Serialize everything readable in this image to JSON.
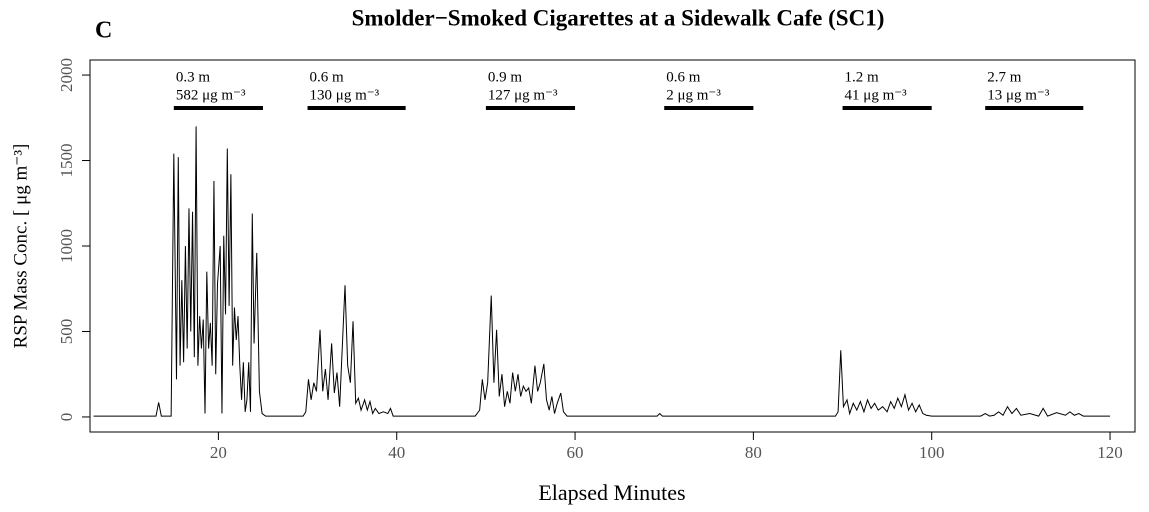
{
  "chart_data": {
    "type": "line",
    "panel": "C",
    "title": "Smolder−Smoked Cigarettes at a Sidewalk Cafe (SC1)",
    "x_label": "Elapsed Minutes",
    "y_label": "RSP Mass Conc. [  μg m⁻³]",
    "color": "#000000",
    "xlim": [
      5.6,
      122.8
    ],
    "ylim": [
      -88,
      2088
    ],
    "xticks": [
      20,
      40,
      60,
      80,
      100,
      120
    ],
    "yticks": [
      0,
      500,
      1000,
      1500,
      2000
    ],
    "x": [
      6,
      13,
      13.3,
      13.6,
      14.7,
      15.0,
      15.3,
      15.5,
      15.7,
      15.9,
      16.1,
      16.3,
      16.5,
      16.7,
      16.9,
      17.1,
      17.3,
      17.5,
      17.7,
      17.9,
      18.1,
      18.3,
      18.5,
      18.7,
      18.9,
      19.1,
      19.3,
      19.5,
      19.7,
      19.9,
      20.2,
      20.4,
      20.6,
      20.8,
      21.0,
      21.2,
      21.4,
      21.6,
      21.8,
      22.0,
      22.2,
      22.4,
      22.6,
      22.8,
      23.0,
      23.2,
      23.4,
      23.6,
      23.8,
      24.0,
      24.3,
      24.6,
      24.9,
      25.3,
      29.5,
      29.8,
      30.1,
      30.4,
      30.7,
      31.0,
      31.4,
      31.7,
      32.0,
      32.3,
      32.7,
      33.0,
      33.3,
      33.6,
      34.2,
      34.5,
      34.8,
      35.1,
      35.4,
      35.7,
      36.0,
      36.4,
      36.7,
      37.0,
      37.3,
      37.6,
      38.0,
      38.5,
      39.0,
      39.3,
      39.6,
      48.8,
      49.3,
      49.6,
      49.9,
      50.2,
      50.6,
      50.9,
      51.2,
      51.5,
      51.8,
      52.1,
      52.4,
      52.7,
      53.0,
      53.3,
      53.6,
      53.9,
      54.2,
      54.5,
      54.8,
      55.1,
      55.5,
      55.8,
      56.1,
      56.5,
      56.8,
      57.1,
      57.4,
      57.7,
      58.0,
      58.4,
      58.7,
      59.1,
      69.2,
      69.5,
      69.8,
      89.2,
      89.5,
      89.8,
      90.1,
      90.5,
      90.8,
      91.2,
      91.6,
      92.0,
      92.4,
      92.8,
      93.2,
      93.6,
      94.0,
      94.5,
      95.0,
      95.4,
      95.8,
      96.2,
      96.6,
      97.0,
      97.4,
      97.8,
      98.2,
      98.6,
      99.0,
      99.4,
      100,
      105.5,
      106,
      106.5,
      107,
      107.5,
      108,
      108.5,
      109,
      109.5,
      110,
      111,
      112,
      112.5,
      113,
      114,
      115,
      115.5,
      116,
      116.5,
      117,
      120
    ],
    "values": [
      5,
      5,
      85,
      5,
      5,
      1540,
      220,
      1520,
      300,
      800,
      320,
      1000,
      400,
      1220,
      500,
      1200,
      350,
      1700,
      300,
      590,
      400,
      570,
      20,
      850,
      400,
      550,
      300,
      1380,
      250,
      780,
      1000,
      20,
      1060,
      600,
      1570,
      650,
      1420,
      300,
      640,
      450,
      590,
      300,
      100,
      320,
      30,
      100,
      320,
      30,
      1190,
      430,
      960,
      150,
      20,
      5,
      5,
      30,
      220,
      100,
      200,
      150,
      510,
      150,
      280,
      100,
      430,
      140,
      260,
      60,
      770,
      300,
      200,
      560,
      80,
      110,
      40,
      100,
      40,
      90,
      20,
      50,
      20,
      30,
      20,
      50,
      5,
      5,
      40,
      220,
      100,
      200,
      710,
      200,
      510,
      120,
      250,
      60,
      150,
      80,
      260,
      150,
      250,
      120,
      180,
      150,
      170,
      80,
      300,
      150,
      200,
      310,
      100,
      40,
      120,
      20,
      80,
      140,
      30,
      5,
      5,
      20,
      5,
      5,
      30,
      390,
      60,
      100,
      20,
      80,
      40,
      90,
      30,
      100,
      50,
      80,
      40,
      60,
      30,
      90,
      50,
      110,
      60,
      130,
      40,
      80,
      30,
      70,
      20,
      10,
      5,
      5,
      20,
      5,
      10,
      30,
      10,
      60,
      20,
      50,
      10,
      20,
      5,
      50,
      5,
      25,
      10,
      30,
      10,
      20,
      5,
      5
    ],
    "annotations": [
      {
        "distance": "0.3 m",
        "concentration": "582 μg m⁻³",
        "start": 15,
        "end": 25
      },
      {
        "distance": "0.6 m",
        "concentration": "130 μg m⁻³",
        "start": 30,
        "end": 41
      },
      {
        "distance": "0.9 m",
        "concentration": "127 μg m⁻³",
        "start": 50,
        "end": 60
      },
      {
        "distance": "0.6 m",
        "concentration": "2 μg m⁻³",
        "start": 70,
        "end": 80
      },
      {
        "distance": "1.2 m",
        "concentration": "41 μg m⁻³",
        "start": 90,
        "end": 100
      },
      {
        "distance": "2.7 m",
        "concentration": "13 μg m⁻³",
        "start": 106,
        "end": 117
      }
    ]
  }
}
